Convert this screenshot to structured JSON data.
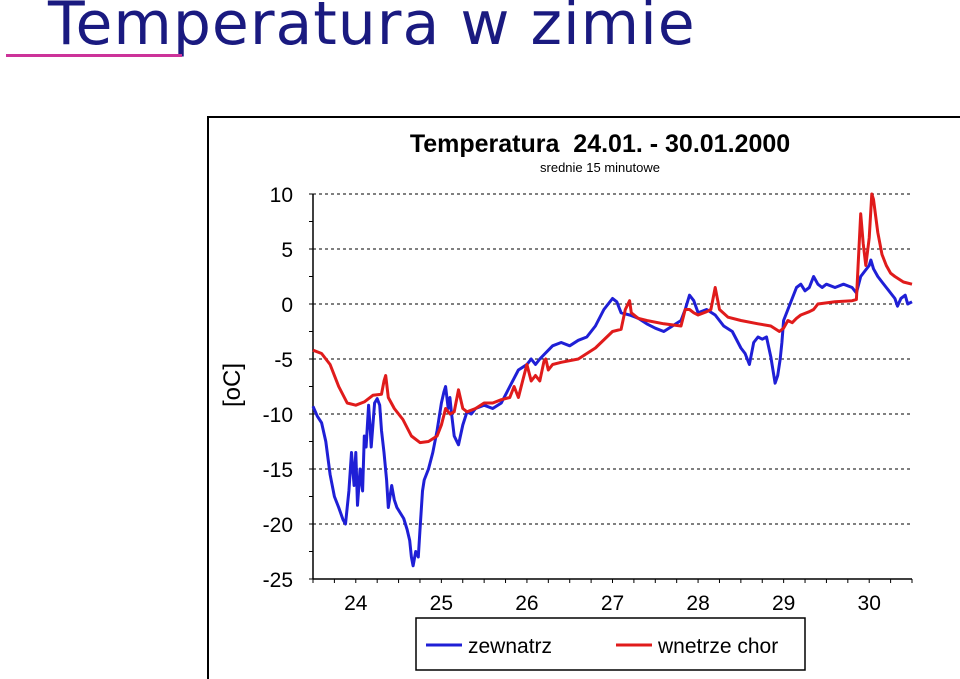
{
  "slide": {
    "title": "Temperatura w zimie"
  },
  "colors": {
    "title": "#1a1a80",
    "underline": "#cc3399",
    "series_outside": "#1f1fd6",
    "series_inside": "#e01b1b",
    "grid": "#000000"
  },
  "chart_data": {
    "type": "line",
    "title": "Temperatura  24.01. - 30.01.2000",
    "subtitle": "srednie 15 minutowe",
    "xlabel": "",
    "ylabel": "[oC]",
    "xlim": [
      23.5,
      30.5
    ],
    "ylim": [
      -25,
      10
    ],
    "yticks": [
      10,
      5,
      0,
      -5,
      -10,
      -15,
      -20,
      -25
    ],
    "xticks": [
      24,
      25,
      26,
      27,
      28,
      29,
      30
    ],
    "grid": "horizontal dashed",
    "legend_position": "bottom",
    "series": [
      {
        "name": "zewnatrz",
        "color": "#1f1fd6",
        "points": [
          [
            23.5,
            -9.3
          ],
          [
            23.55,
            -10.2
          ],
          [
            23.6,
            -10.8
          ],
          [
            23.65,
            -12.5
          ],
          [
            23.7,
            -15.5
          ],
          [
            23.75,
            -17.5
          ],
          [
            23.8,
            -18.5
          ],
          [
            23.85,
            -19.6
          ],
          [
            23.88,
            -20.0
          ],
          [
            23.92,
            -17.0
          ],
          [
            23.95,
            -13.5
          ],
          [
            23.98,
            -16.5
          ],
          [
            24.0,
            -13.5
          ],
          [
            24.02,
            -18.3
          ],
          [
            24.05,
            -15.0
          ],
          [
            24.08,
            -17.0
          ],
          [
            24.1,
            -12.0
          ],
          [
            24.12,
            -13.0
          ],
          [
            24.15,
            -9.2
          ],
          [
            24.17,
            -11.5
          ],
          [
            24.18,
            -13.0
          ],
          [
            24.2,
            -11.0
          ],
          [
            24.22,
            -9.0
          ],
          [
            24.25,
            -8.6
          ],
          [
            24.28,
            -9.2
          ],
          [
            24.3,
            -11.5
          ],
          [
            24.33,
            -13.5
          ],
          [
            24.36,
            -16.0
          ],
          [
            24.38,
            -18.5
          ],
          [
            24.4,
            -17.5
          ],
          [
            24.42,
            -16.5
          ],
          [
            24.45,
            -17.8
          ],
          [
            24.48,
            -18.5
          ],
          [
            24.52,
            -19.0
          ],
          [
            24.56,
            -19.5
          ],
          [
            24.6,
            -20.5
          ],
          [
            24.63,
            -21.5
          ],
          [
            24.65,
            -23.0
          ],
          [
            24.67,
            -23.8
          ],
          [
            24.7,
            -22.5
          ],
          [
            24.73,
            -23.0
          ],
          [
            24.75,
            -20.5
          ],
          [
            24.78,
            -17.0
          ],
          [
            24.8,
            -16.0
          ],
          [
            24.85,
            -15.0
          ],
          [
            24.9,
            -13.5
          ],
          [
            24.95,
            -11.5
          ],
          [
            25.0,
            -9.0
          ],
          [
            25.03,
            -8.0
          ],
          [
            25.05,
            -7.5
          ],
          [
            25.08,
            -9.5
          ],
          [
            25.1,
            -8.5
          ],
          [
            25.12,
            -10.0
          ],
          [
            25.15,
            -12.0
          ],
          [
            25.2,
            -12.8
          ],
          [
            25.25,
            -11.0
          ],
          [
            25.3,
            -9.8
          ],
          [
            25.35,
            -10.0
          ],
          [
            25.4,
            -9.5
          ],
          [
            25.5,
            -9.2
          ],
          [
            25.6,
            -9.5
          ],
          [
            25.7,
            -9.0
          ],
          [
            25.8,
            -7.5
          ],
          [
            25.9,
            -6.0
          ],
          [
            26.0,
            -5.5
          ],
          [
            26.05,
            -5.0
          ],
          [
            26.1,
            -5.5
          ],
          [
            26.15,
            -5.0
          ],
          [
            26.2,
            -4.6
          ],
          [
            26.3,
            -3.8
          ],
          [
            26.4,
            -3.5
          ],
          [
            26.5,
            -3.8
          ],
          [
            26.6,
            -3.3
          ],
          [
            26.7,
            -3.0
          ],
          [
            26.8,
            -2.0
          ],
          [
            26.9,
            -0.5
          ],
          [
            26.95,
            0.0
          ],
          [
            27.0,
            0.5
          ],
          [
            27.05,
            0.2
          ],
          [
            27.1,
            -0.8
          ],
          [
            27.2,
            -1.0
          ],
          [
            27.3,
            -1.3
          ],
          [
            27.4,
            -1.8
          ],
          [
            27.5,
            -2.2
          ],
          [
            27.6,
            -2.5
          ],
          [
            27.7,
            -2.0
          ],
          [
            27.8,
            -1.5
          ],
          [
            27.85,
            -0.5
          ],
          [
            27.9,
            0.8
          ],
          [
            27.95,
            0.3
          ],
          [
            28.0,
            -0.8
          ],
          [
            28.1,
            -0.5
          ],
          [
            28.2,
            -1.0
          ],
          [
            28.3,
            -2.0
          ],
          [
            28.4,
            -2.5
          ],
          [
            28.5,
            -4.0
          ],
          [
            28.55,
            -4.5
          ],
          [
            28.6,
            -5.5
          ],
          [
            28.65,
            -3.5
          ],
          [
            28.7,
            -3.0
          ],
          [
            28.75,
            -3.2
          ],
          [
            28.8,
            -3.0
          ],
          [
            28.85,
            -4.8
          ],
          [
            28.9,
            -7.2
          ],
          [
            28.93,
            -6.5
          ],
          [
            28.96,
            -5.0
          ],
          [
            28.98,
            -3.5
          ],
          [
            29.0,
            -1.5
          ],
          [
            29.05,
            -0.5
          ],
          [
            29.1,
            0.5
          ],
          [
            29.15,
            1.5
          ],
          [
            29.2,
            1.8
          ],
          [
            29.25,
            1.2
          ],
          [
            29.3,
            1.5
          ],
          [
            29.35,
            2.5
          ],
          [
            29.4,
            1.8
          ],
          [
            29.45,
            1.5
          ],
          [
            29.5,
            1.8
          ],
          [
            29.6,
            1.5
          ],
          [
            29.7,
            1.8
          ],
          [
            29.8,
            1.5
          ],
          [
            29.85,
            1.0
          ],
          [
            29.9,
            2.5
          ],
          [
            29.95,
            3.0
          ],
          [
            30.0,
            3.5
          ],
          [
            30.02,
            4.0
          ],
          [
            30.05,
            3.2
          ],
          [
            30.1,
            2.5
          ],
          [
            30.15,
            2.0
          ],
          [
            30.2,
            1.5
          ],
          [
            30.25,
            1.0
          ],
          [
            30.3,
            0.5
          ],
          [
            30.33,
            -0.2
          ],
          [
            30.37,
            0.5
          ],
          [
            30.42,
            0.8
          ],
          [
            30.45,
            0.0
          ],
          [
            30.5,
            0.2
          ]
        ]
      },
      {
        "name": "wnetrze chor",
        "color": "#e01b1b",
        "points": [
          [
            23.5,
            -4.2
          ],
          [
            23.6,
            -4.5
          ],
          [
            23.7,
            -5.5
          ],
          [
            23.8,
            -7.5
          ],
          [
            23.9,
            -9.0
          ],
          [
            24.0,
            -9.2
          ],
          [
            24.1,
            -8.9
          ],
          [
            24.2,
            -8.3
          ],
          [
            24.3,
            -8.2
          ],
          [
            24.33,
            -7.0
          ],
          [
            24.35,
            -6.5
          ],
          [
            24.38,
            -8.5
          ],
          [
            24.45,
            -9.5
          ],
          [
            24.55,
            -10.5
          ],
          [
            24.65,
            -12.0
          ],
          [
            24.75,
            -12.6
          ],
          [
            24.85,
            -12.5
          ],
          [
            24.95,
            -12.0
          ],
          [
            25.0,
            -11.0
          ],
          [
            25.05,
            -9.5
          ],
          [
            25.1,
            -10.0
          ],
          [
            25.15,
            -9.8
          ],
          [
            25.2,
            -7.8
          ],
          [
            25.25,
            -9.5
          ],
          [
            25.3,
            -9.8
          ],
          [
            25.4,
            -9.5
          ],
          [
            25.5,
            -9.0
          ],
          [
            25.6,
            -9.0
          ],
          [
            25.7,
            -8.7
          ],
          [
            25.8,
            -8.5
          ],
          [
            25.85,
            -7.5
          ],
          [
            25.9,
            -8.5
          ],
          [
            25.95,
            -7.0
          ],
          [
            26.0,
            -5.5
          ],
          [
            26.05,
            -7.0
          ],
          [
            26.1,
            -6.5
          ],
          [
            26.15,
            -7.0
          ],
          [
            26.2,
            -5.2
          ],
          [
            26.22,
            -5.0
          ],
          [
            26.25,
            -6.0
          ],
          [
            26.3,
            -5.5
          ],
          [
            26.4,
            -5.3
          ],
          [
            26.6,
            -5.0
          ],
          [
            26.8,
            -4.0
          ],
          [
            27.0,
            -2.5
          ],
          [
            27.1,
            -2.3
          ],
          [
            27.15,
            -0.5
          ],
          [
            27.2,
            0.3
          ],
          [
            27.22,
            -0.8
          ],
          [
            27.3,
            -1.3
          ],
          [
            27.4,
            -1.5
          ],
          [
            27.6,
            -1.8
          ],
          [
            27.8,
            -2.0
          ],
          [
            27.85,
            -0.5
          ],
          [
            27.9,
            -0.5
          ],
          [
            27.95,
            -0.8
          ],
          [
            28.0,
            -1.0
          ],
          [
            28.1,
            -0.7
          ],
          [
            28.15,
            -0.5
          ],
          [
            28.2,
            1.5
          ],
          [
            28.25,
            -0.5
          ],
          [
            28.35,
            -1.2
          ],
          [
            28.5,
            -1.5
          ],
          [
            28.7,
            -1.8
          ],
          [
            28.85,
            -2.0
          ],
          [
            28.95,
            -2.5
          ],
          [
            29.0,
            -2.2
          ],
          [
            29.05,
            -1.5
          ],
          [
            29.1,
            -1.7
          ],
          [
            29.15,
            -1.3
          ],
          [
            29.2,
            -1.0
          ],
          [
            29.3,
            -0.7
          ],
          [
            29.35,
            -0.5
          ],
          [
            29.4,
            0.0
          ],
          [
            29.6,
            0.2
          ],
          [
            29.8,
            0.3
          ],
          [
            29.85,
            0.4
          ],
          [
            29.87,
            3.5
          ],
          [
            29.9,
            8.2
          ],
          [
            29.93,
            5.5
          ],
          [
            29.96,
            3.5
          ],
          [
            30.0,
            6.0
          ],
          [
            30.03,
            10.0
          ],
          [
            30.05,
            9.5
          ],
          [
            30.1,
            6.5
          ],
          [
            30.15,
            4.5
          ],
          [
            30.2,
            3.5
          ],
          [
            30.25,
            2.8
          ],
          [
            30.3,
            2.5
          ],
          [
            30.4,
            2.0
          ],
          [
            30.5,
            1.8
          ]
        ]
      }
    ]
  }
}
